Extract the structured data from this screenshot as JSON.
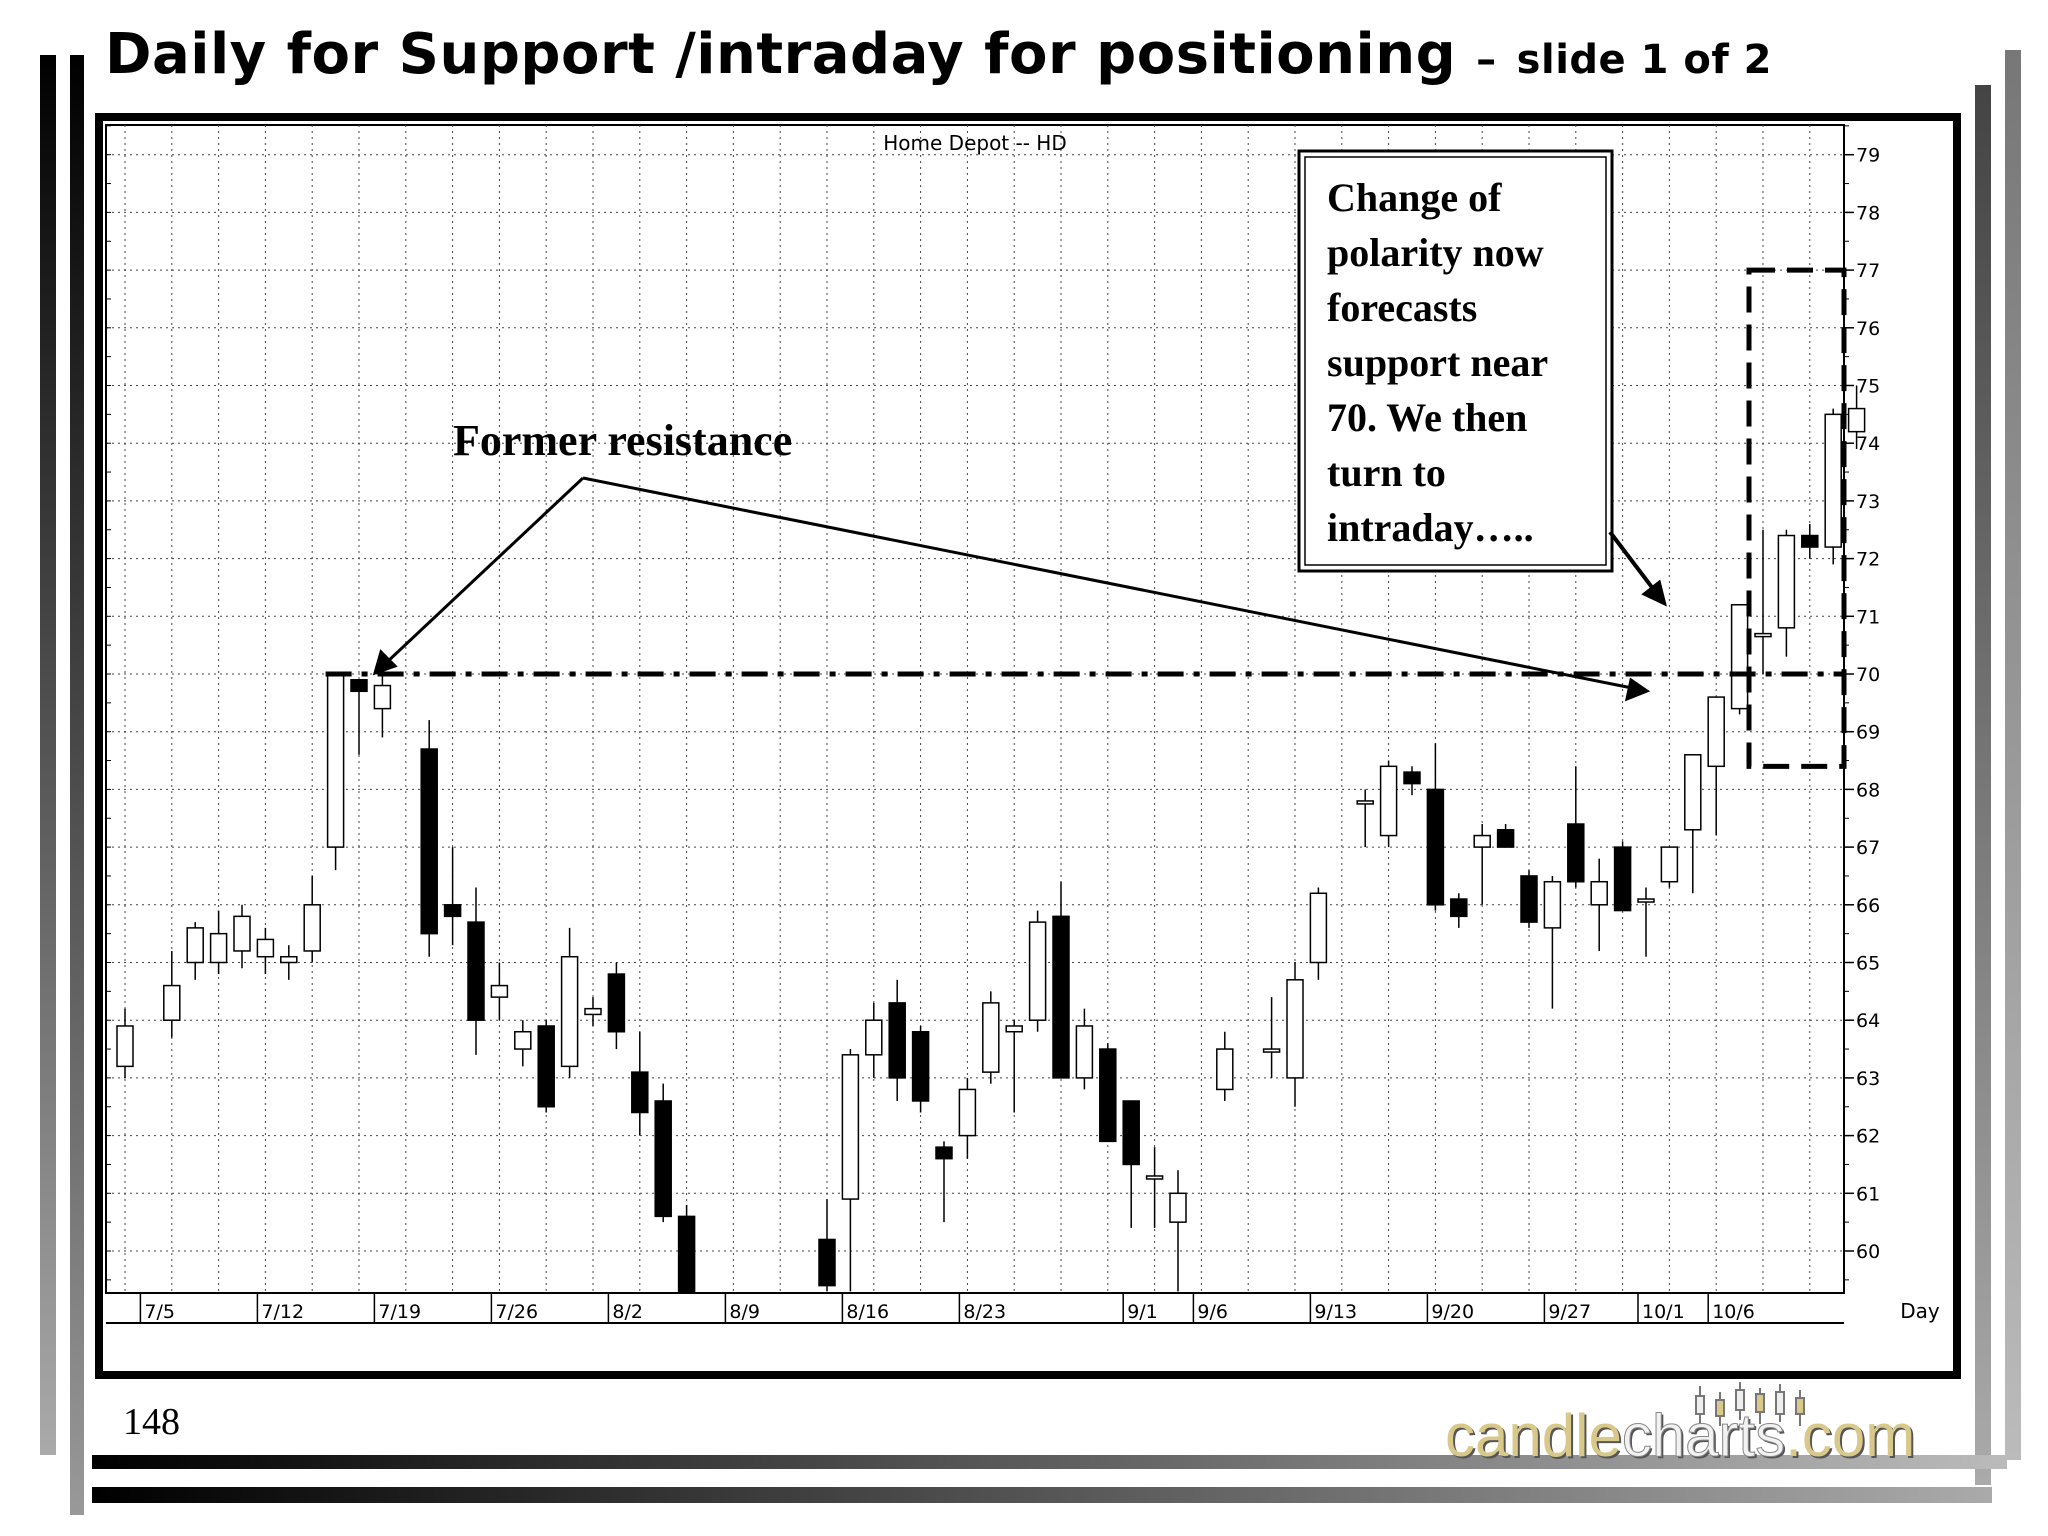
{
  "slide": {
    "title_main": "Daily for Support /intraday for positioning",
    "title_dash": "–",
    "title_sub": "slide 1 of 2",
    "page_number": "148"
  },
  "logo": {
    "part1": "candle",
    "part2": "charts",
    "part3": ".com"
  },
  "annotations": {
    "former_resistance": "Former resistance",
    "polarity_box_lines": [
      "Change of",
      "polarity now",
      "forecasts",
      "support near",
      "70. We then",
      "turn to",
      "intraday….."
    ]
  },
  "colors": {
    "up_body": "#ffffff",
    "down_body": "#000000",
    "frame": "#000000",
    "logo_gold": "#d8c98a"
  },
  "chart_data": {
    "type": "candlestick",
    "title": "Home Depot -- HD",
    "xlabel": "Day",
    "ylabel": "",
    "ylim": [
      59.3,
      79.5
    ],
    "y_ticks": [
      60,
      61,
      62,
      63,
      64,
      65,
      66,
      67,
      68,
      69,
      70,
      71,
      72,
      73,
      74,
      75,
      76,
      77,
      78,
      79
    ],
    "y_axis_side": "right",
    "grid": true,
    "x_tick_labels": [
      {
        "label": "7/5",
        "index": 1
      },
      {
        "label": "7/12",
        "index": 6
      },
      {
        "label": "7/19",
        "index": 11
      },
      {
        "label": "7/26",
        "index": 16
      },
      {
        "label": "8/2",
        "index": 21
      },
      {
        "label": "8/9",
        "index": 26
      },
      {
        "label": "8/16",
        "index": 31
      },
      {
        "label": "8/23",
        "index": 36
      },
      {
        "label": "9/1",
        "index": 43
      },
      {
        "label": "9/6",
        "index": 46
      },
      {
        "label": "9/13",
        "index": 51
      },
      {
        "label": "9/20",
        "index": 56
      },
      {
        "label": "9/27",
        "index": 61
      },
      {
        "label": "10/1",
        "index": 65
      },
      {
        "label": "10/6",
        "index": 68
      }
    ],
    "candles": [
      {
        "i": 0,
        "o": 63.2,
        "h": 64.2,
        "l": 63.0,
        "c": 63.9
      },
      {
        "i": 2,
        "o": 64.0,
        "h": 65.2,
        "l": 63.7,
        "c": 64.6
      },
      {
        "i": 3,
        "o": 65.0,
        "h": 65.7,
        "l": 64.7,
        "c": 65.6
      },
      {
        "i": 4,
        "o": 65.0,
        "h": 65.9,
        "l": 64.8,
        "c": 65.5
      },
      {
        "i": 5,
        "o": 65.2,
        "h": 66.0,
        "l": 64.9,
        "c": 65.8
      },
      {
        "i": 6,
        "o": 65.1,
        "h": 65.6,
        "l": 64.8,
        "c": 65.4
      },
      {
        "i": 7,
        "o": 65.0,
        "h": 65.3,
        "l": 64.7,
        "c": 65.1
      },
      {
        "i": 8,
        "o": 65.2,
        "h": 66.5,
        "l": 65.0,
        "c": 66.0
      },
      {
        "i": 9,
        "o": 67.0,
        "h": 70.0,
        "l": 66.6,
        "c": 70.0
      },
      {
        "i": 10,
        "o": 69.9,
        "h": 69.9,
        "l": 68.6,
        "c": 69.7
      },
      {
        "i": 11,
        "o": 69.4,
        "h": 70.0,
        "l": 68.9,
        "c": 69.8
      },
      {
        "i": 13,
        "o": 68.7,
        "h": 69.2,
        "l": 65.1,
        "c": 65.5
      },
      {
        "i": 14,
        "o": 66.0,
        "h": 67.0,
        "l": 65.3,
        "c": 65.8
      },
      {
        "i": 15,
        "o": 65.7,
        "h": 66.3,
        "l": 63.4,
        "c": 64.0
      },
      {
        "i": 16,
        "o": 64.4,
        "h": 65.0,
        "l": 64.0,
        "c": 64.6
      },
      {
        "i": 17,
        "o": 63.5,
        "h": 64.0,
        "l": 63.2,
        "c": 63.8
      },
      {
        "i": 18,
        "o": 63.9,
        "h": 64.0,
        "l": 62.4,
        "c": 62.5
      },
      {
        "i": 19,
        "o": 63.2,
        "h": 65.6,
        "l": 63.0,
        "c": 65.1
      },
      {
        "i": 20,
        "o": 64.1,
        "h": 64.4,
        "l": 63.9,
        "c": 64.2
      },
      {
        "i": 21,
        "o": 64.8,
        "h": 65.0,
        "l": 63.5,
        "c": 63.8
      },
      {
        "i": 22,
        "o": 63.1,
        "h": 63.8,
        "l": 62.0,
        "c": 62.4
      },
      {
        "i": 23,
        "o": 62.6,
        "h": 62.9,
        "l": 60.5,
        "c": 60.6
      },
      {
        "i": 24,
        "o": 60.6,
        "h": 60.8,
        "l": 59.3,
        "c": 59.3
      },
      {
        "i": 30,
        "o": 60.2,
        "h": 60.9,
        "l": 59.3,
        "c": 59.4
      },
      {
        "i": 31,
        "o": 60.9,
        "h": 63.5,
        "l": 59.3,
        "c": 63.4
      },
      {
        "i": 32,
        "o": 63.4,
        "h": 64.3,
        "l": 63.0,
        "c": 64.0
      },
      {
        "i": 33,
        "o": 64.3,
        "h": 64.7,
        "l": 62.6,
        "c": 63.0
      },
      {
        "i": 34,
        "o": 63.8,
        "h": 63.9,
        "l": 62.4,
        "c": 62.6
      },
      {
        "i": 35,
        "o": 61.8,
        "h": 61.9,
        "l": 60.5,
        "c": 61.6
      },
      {
        "i": 36,
        "o": 62.0,
        "h": 63.0,
        "l": 61.6,
        "c": 62.8
      },
      {
        "i": 37,
        "o": 63.1,
        "h": 64.5,
        "l": 62.9,
        "c": 64.3
      },
      {
        "i": 38,
        "o": 63.8,
        "h": 64.0,
        "l": 62.4,
        "c": 63.9
      },
      {
        "i": 39,
        "o": 64.0,
        "h": 65.9,
        "l": 63.8,
        "c": 65.7
      },
      {
        "i": 40,
        "o": 65.8,
        "h": 66.4,
        "l": 63.0,
        "c": 63.0
      },
      {
        "i": 41,
        "o": 63.0,
        "h": 64.2,
        "l": 62.8,
        "c": 63.9
      },
      {
        "i": 42,
        "o": 63.5,
        "h": 63.6,
        "l": 61.9,
        "c": 61.9
      },
      {
        "i": 43,
        "o": 62.6,
        "h": 62.6,
        "l": 60.4,
        "c": 61.5
      },
      {
        "i": 44,
        "o": 61.3,
        "h": 61.8,
        "l": 60.4,
        "c": 61.3
      },
      {
        "i": 45,
        "o": 60.5,
        "h": 61.4,
        "l": 59.3,
        "c": 61.0
      },
      {
        "i": 47,
        "o": 62.8,
        "h": 63.8,
        "l": 62.6,
        "c": 63.5
      },
      {
        "i": 49,
        "o": 63.5,
        "h": 64.4,
        "l": 63.0,
        "c": 63.5
      },
      {
        "i": 50,
        "o": 63.0,
        "h": 65.0,
        "l": 62.5,
        "c": 64.7
      },
      {
        "i": 51,
        "o": 65.0,
        "h": 66.3,
        "l": 64.7,
        "c": 66.2
      },
      {
        "i": 53,
        "o": 67.8,
        "h": 68.0,
        "l": 67.0,
        "c": 67.8
      },
      {
        "i": 54,
        "o": 67.2,
        "h": 68.5,
        "l": 67.0,
        "c": 68.4
      },
      {
        "i": 55,
        "o": 68.3,
        "h": 68.4,
        "l": 67.9,
        "c": 68.1
      },
      {
        "i": 56,
        "o": 68.0,
        "h": 68.8,
        "l": 65.9,
        "c": 66.0
      },
      {
        "i": 57,
        "o": 66.1,
        "h": 66.2,
        "l": 65.6,
        "c": 65.8
      },
      {
        "i": 58,
        "o": 67.0,
        "h": 67.4,
        "l": 66.0,
        "c": 67.2
      },
      {
        "i": 59,
        "o": 67.3,
        "h": 67.4,
        "l": 67.0,
        "c": 67.0
      },
      {
        "i": 60,
        "o": 66.5,
        "h": 66.6,
        "l": 65.6,
        "c": 65.7
      },
      {
        "i": 61,
        "o": 65.6,
        "h": 66.5,
        "l": 64.2,
        "c": 66.4
      },
      {
        "i": 62,
        "o": 67.4,
        "h": 68.4,
        "l": 66.3,
        "c": 66.4
      },
      {
        "i": 63,
        "o": 66.0,
        "h": 66.8,
        "l": 65.2,
        "c": 66.4
      },
      {
        "i": 64,
        "o": 67.0,
        "h": 67.1,
        "l": 65.9,
        "c": 65.9
      },
      {
        "i": 65,
        "o": 66.1,
        "h": 66.3,
        "l": 65.1,
        "c": 66.1
      },
      {
        "i": 66,
        "o": 66.4,
        "h": 67.0,
        "l": 66.3,
        "c": 67.0
      },
      {
        "i": 67,
        "o": 67.3,
        "h": 68.6,
        "l": 66.2,
        "c": 68.6
      },
      {
        "i": 68,
        "o": 68.4,
        "h": 69.6,
        "l": 67.2,
        "c": 69.6
      },
      {
        "i": 69,
        "o": 69.4,
        "h": 71.2,
        "l": 69.3,
        "c": 71.2
      },
      {
        "i": 70,
        "o": 70.7,
        "h": 72.5,
        "l": 70.0,
        "c": 70.7
      },
      {
        "i": 71,
        "o": 70.8,
        "h": 72.5,
        "l": 70.3,
        "c": 72.4
      },
      {
        "i": 72,
        "o": 72.4,
        "h": 72.6,
        "l": 72.0,
        "c": 72.2
      },
      {
        "i": 73,
        "o": 72.2,
        "h": 74.6,
        "l": 71.9,
        "c": 74.5
      },
      {
        "i": 74,
        "o": 74.2,
        "h": 75.0,
        "l": 73.9,
        "c": 74.6
      }
    ],
    "reference_lines": [
      {
        "type": "horizontal",
        "y": 70.0,
        "style": "dash-dot",
        "from_index": 9,
        "to_index": 76
      }
    ],
    "highlight_box": {
      "from_index": 70,
      "to_index": 76,
      "y_low": 68.4,
      "y_high": 77.0,
      "style": "dashed"
    }
  }
}
